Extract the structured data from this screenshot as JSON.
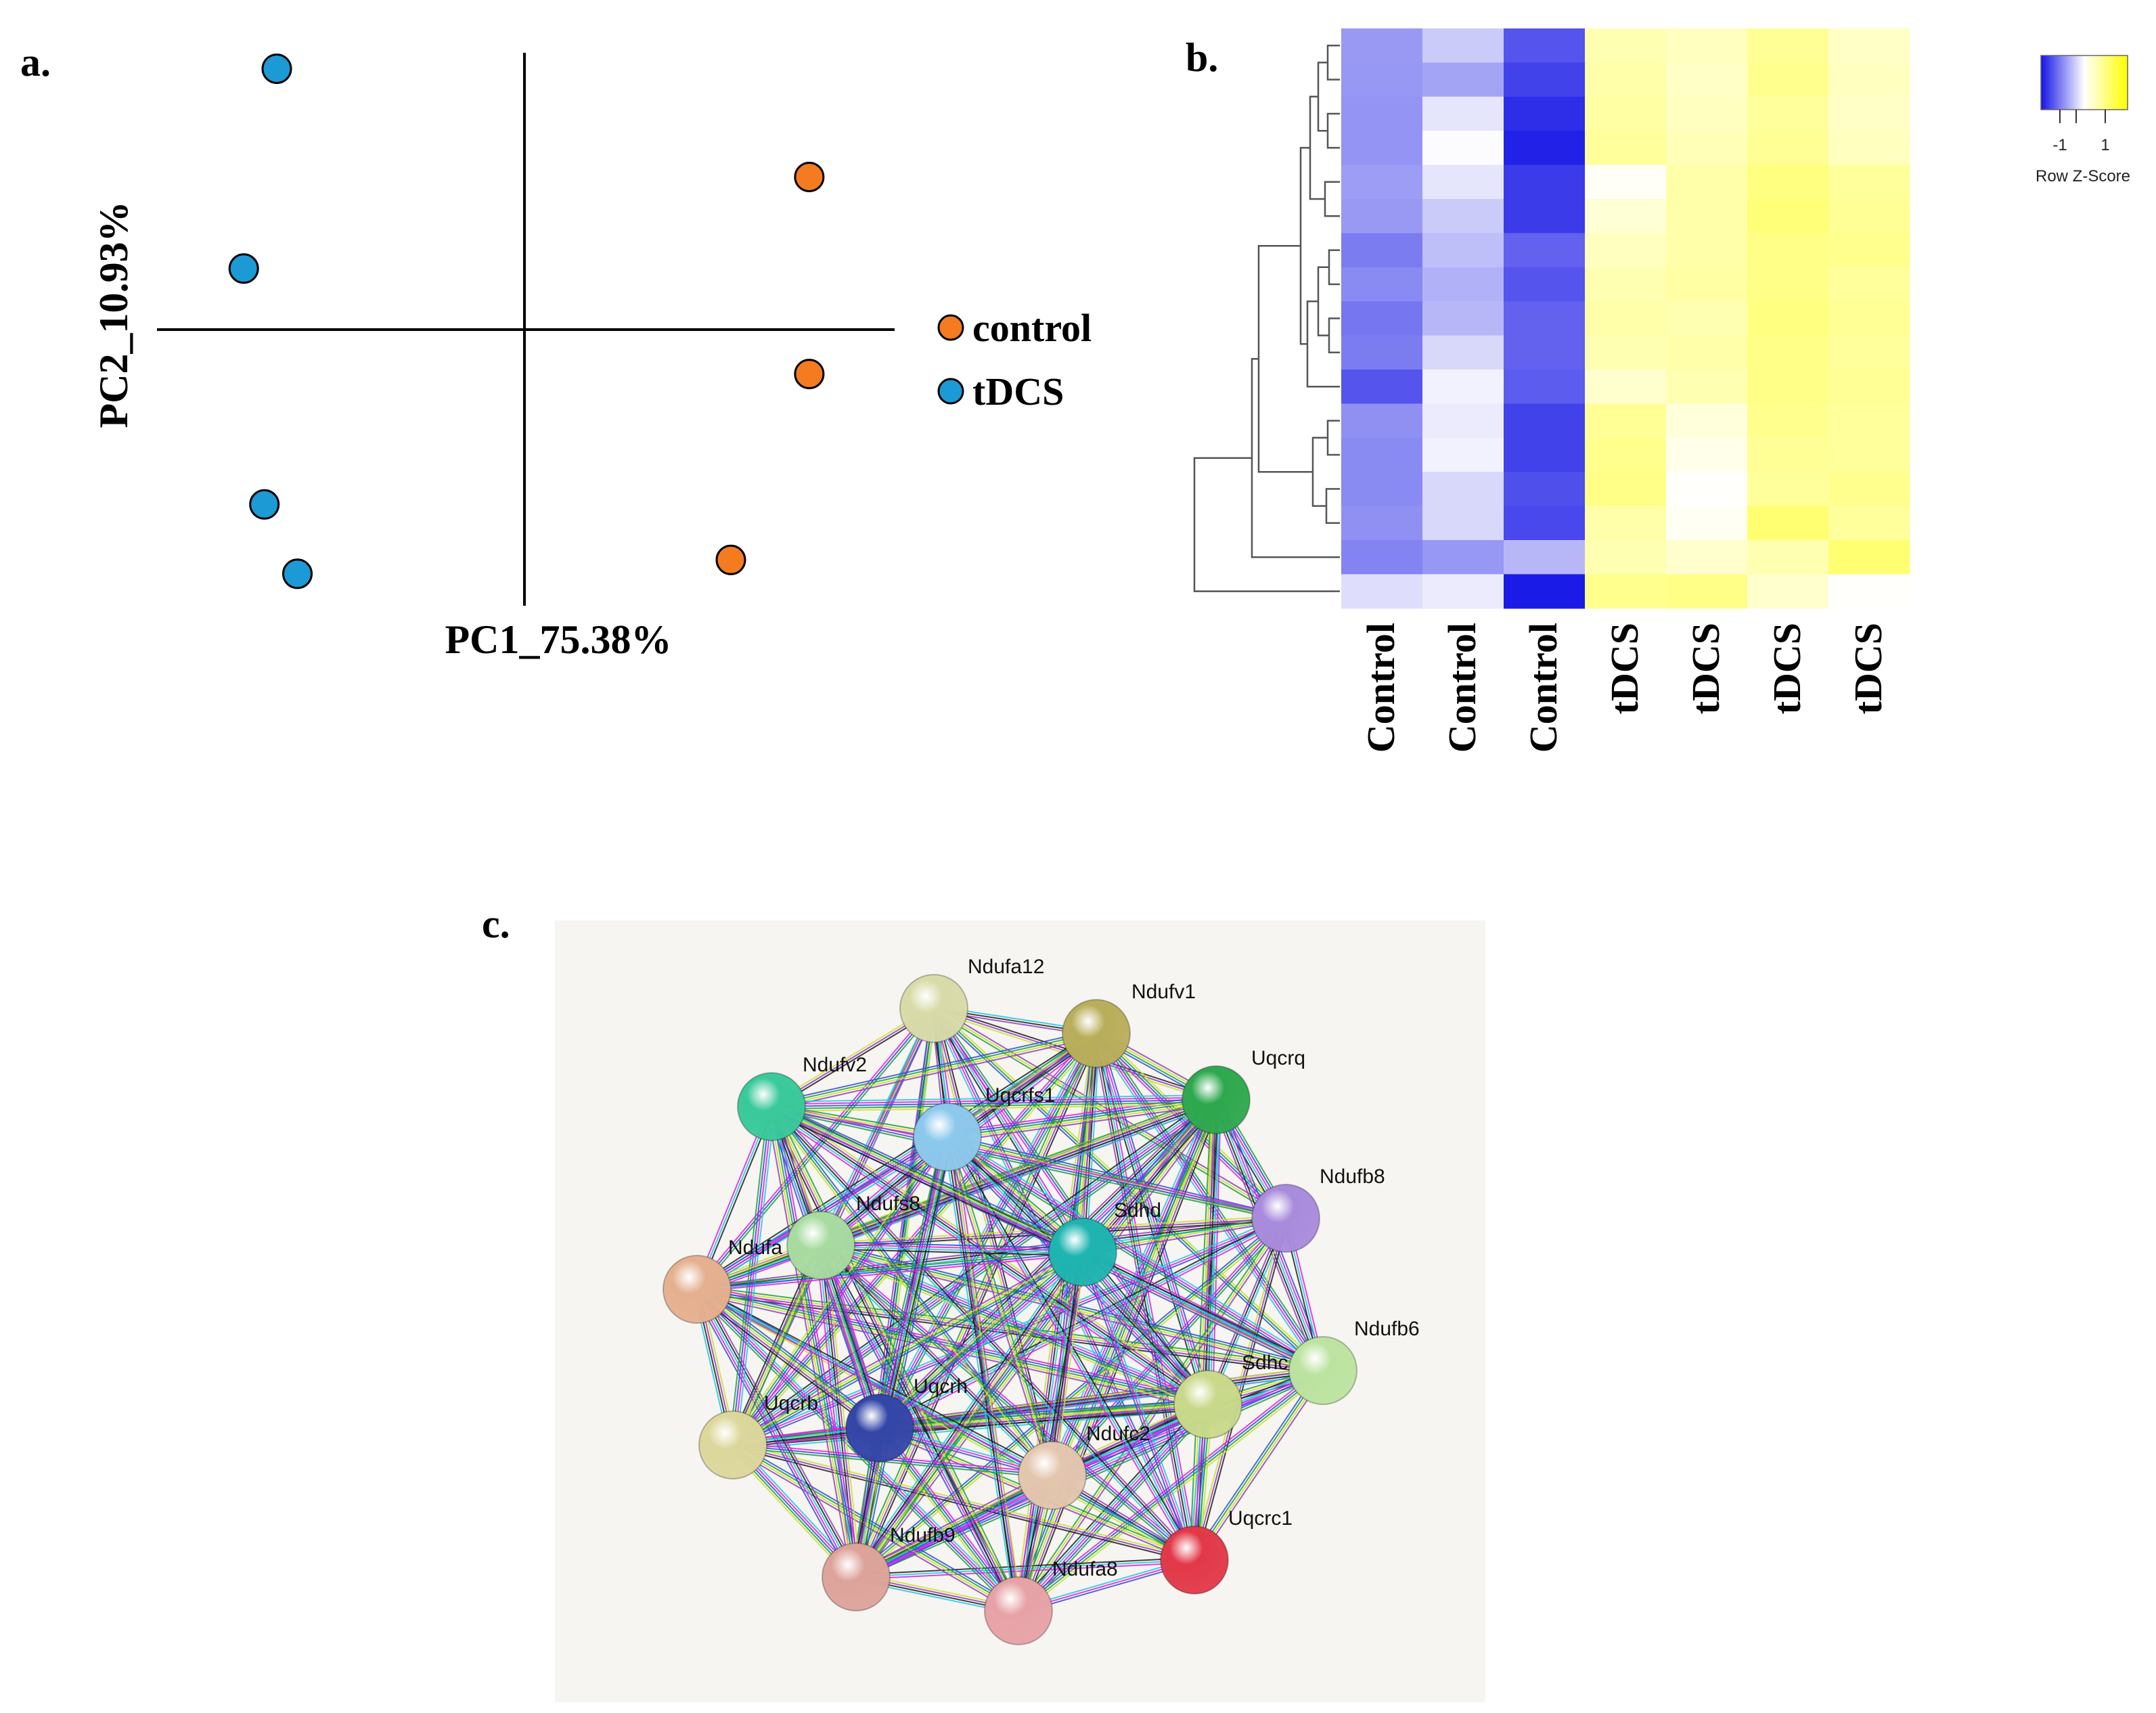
{
  "chart_data": [
    {
      "panel": "a.",
      "type": "scatter",
      "xlabel": "PC1_75.38%",
      "ylabel": "PC2_10.93%",
      "xlim": [
        -1,
        1
      ],
      "ylim": [
        -1,
        1
      ],
      "legend_position": "right",
      "series": [
        {
          "name": "control",
          "color": "#F47B20",
          "points": [
            [
              0.69,
              0.55
            ],
            [
              0.69,
              -0.16
            ],
            [
              0.5,
              -0.83
            ]
          ]
        },
        {
          "name": "tDCS",
          "color": "#1C9AD6",
          "points": [
            [
              -0.6,
              0.94
            ],
            [
              -0.68,
              0.22
            ],
            [
              -0.63,
              -0.63
            ],
            [
              -0.55,
              -0.88
            ]
          ]
        }
      ]
    },
    {
      "panel": "b.",
      "type": "heatmap",
      "columns": [
        "Control",
        "Control",
        "Control",
        "tDCS",
        "tDCS",
        "tDCS",
        "tDCS"
      ],
      "colorscale": {
        "low": "#1414E6",
        "mid": "#FFFFFF",
        "high": "#FFFF00"
      },
      "legend": {
        "title": "Row Z-Score",
        "ticks": [
          "-1",
          "1"
        ],
        "tick_values": [
          -1,
          1
        ]
      },
      "values": [
        [
          -0.78,
          -0.4,
          -1.3,
          0.55,
          0.45,
          0.75,
          0.4
        ],
        [
          -0.8,
          -0.7,
          -1.45,
          0.6,
          0.4,
          0.8,
          0.45
        ],
        [
          -0.82,
          -0.2,
          -1.6,
          0.65,
          0.45,
          0.7,
          0.4
        ],
        [
          -0.82,
          -0.02,
          -1.7,
          0.7,
          0.5,
          0.75,
          0.45
        ],
        [
          -0.75,
          -0.2,
          -1.5,
          0.05,
          0.6,
          0.9,
          0.7
        ],
        [
          -0.78,
          -0.4,
          -1.5,
          0.3,
          0.6,
          0.95,
          0.75
        ],
        [
          -1.0,
          -0.5,
          -1.2,
          0.45,
          0.6,
          0.85,
          0.8
        ],
        [
          -0.9,
          -0.6,
          -1.3,
          0.55,
          0.65,
          0.85,
          0.7
        ],
        [
          -1.05,
          -0.55,
          -1.2,
          0.6,
          0.55,
          0.9,
          0.75
        ],
        [
          -1.0,
          -0.3,
          -1.2,
          0.55,
          0.6,
          0.85,
          0.7
        ],
        [
          -1.3,
          -0.1,
          -1.25,
          0.35,
          0.55,
          0.85,
          0.75
        ],
        [
          -0.85,
          -0.15,
          -1.45,
          0.75,
          0.25,
          0.8,
          0.7
        ],
        [
          -0.9,
          -0.1,
          -1.45,
          0.8,
          0.15,
          0.75,
          0.7
        ],
        [
          -0.9,
          -0.3,
          -1.35,
          0.85,
          0.02,
          0.7,
          0.8
        ],
        [
          -0.85,
          -0.3,
          -1.4,
          0.6,
          0.08,
          1.0,
          0.7
        ],
        [
          -0.95,
          -0.8,
          -0.55,
          0.55,
          0.35,
          0.55,
          1.0
        ],
        [
          -0.25,
          -0.15,
          -1.75,
          0.8,
          0.85,
          0.35,
          0.02
        ]
      ]
    }
  ],
  "network": {
    "panel": "c.",
    "nodes": [
      {
        "name": "Ndufa12",
        "color": "#D8DBA8"
      },
      {
        "name": "Ndufv1",
        "color": "#B9AE5A"
      },
      {
        "name": "Uqcrq",
        "color": "#2EA84E"
      },
      {
        "name": "Ndufb8",
        "color": "#A88BDC"
      },
      {
        "name": "Ndufb6",
        "color": "#BCE3A0"
      },
      {
        "name": "Sdhc",
        "color": "#C9D98A"
      },
      {
        "name": "Uqcrc1",
        "color": "#E23848"
      },
      {
        "name": "Ndufa8",
        "color": "#E7A2A6"
      },
      {
        "name": "Ndufb9",
        "color": "#DDA39A"
      },
      {
        "name": "Ndufc2",
        "color": "#E4C6AE"
      },
      {
        "name": "Uqcrb",
        "color": "#DCD79B"
      },
      {
        "name": "Uqcrh",
        "color": "#3346A8"
      },
      {
        "name": "Ndufa",
        "color": "#E5B08F"
      },
      {
        "name": "Ndufs8",
        "color": "#A8DBA0"
      },
      {
        "name": "Sdhd",
        "color": "#1EB4B0"
      },
      {
        "name": "Uqcrfs1",
        "color": "#8CC8EC"
      },
      {
        "name": "Ndufv2",
        "color": "#39C99A"
      }
    ],
    "edge_colors": [
      "#E020E0",
      "#20C8E8",
      "#202020",
      "#9040C0",
      "#C8E030",
      "#20A040",
      "#3050D8"
    ]
  }
}
